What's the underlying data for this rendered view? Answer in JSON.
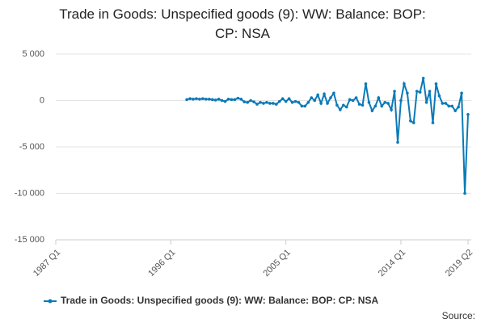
{
  "chart_data": {
    "type": "line",
    "title": "Trade in Goods: Unspecified goods (9): WW: Balance: BOP: CP: NSA",
    "source": "Source:",
    "x": [
      1997.25,
      1997.5,
      1997.75,
      1998,
      1998.25,
      1998.5,
      1998.75,
      1999,
      1999.25,
      1999.5,
      1999.75,
      2000,
      2000.25,
      2000.5,
      2000.75,
      2001,
      2001.25,
      2001.5,
      2001.75,
      2002,
      2002.25,
      2002.5,
      2002.75,
      2003,
      2003.25,
      2003.5,
      2003.75,
      2004,
      2004.25,
      2004.5,
      2004.75,
      2005,
      2005.25,
      2005.5,
      2005.75,
      2006,
      2006.25,
      2006.5,
      2006.75,
      2007,
      2007.25,
      2007.5,
      2007.75,
      2008,
      2008.25,
      2008.5,
      2008.75,
      2009,
      2009.25,
      2009.5,
      2009.75,
      2010,
      2010.25,
      2010.5,
      2010.75,
      2011,
      2011.25,
      2011.5,
      2011.75,
      2012,
      2012.25,
      2012.5,
      2012.75,
      2013,
      2013.25,
      2013.5,
      2013.75,
      2014,
      2014.25,
      2014.5,
      2014.75,
      2015,
      2015.25,
      2015.5,
      2015.75,
      2016,
      2016.25,
      2016.5,
      2016.75,
      2017,
      2017.25,
      2017.5,
      2017.75,
      2018,
      2018.25,
      2018.5,
      2018.75,
      2019,
      2019.25
    ],
    "series": [
      {
        "name": "Trade in Goods: Unspecified goods (9): WW: Balance: BOP: CP: NSA",
        "color": "#0a7ab8",
        "values": [
          100,
          200,
          150,
          200,
          150,
          200,
          150,
          150,
          100,
          50,
          150,
          0,
          -100,
          150,
          100,
          100,
          250,
          150,
          -150,
          -200,
          0,
          -150,
          -400,
          -200,
          -300,
          -200,
          -300,
          -300,
          -400,
          -100,
          200,
          -100,
          200,
          -200,
          -100,
          -200,
          -600,
          -600,
          -200,
          300,
          0,
          600,
          -300,
          700,
          -300,
          300,
          800,
          -500,
          -1000,
          -500,
          -700,
          100,
          0,
          300,
          -400,
          -500,
          1800,
          -200,
          -1100,
          -600,
          300,
          -600,
          -200,
          -300,
          -1000,
          1000,
          -4500,
          0,
          1800,
          800,
          -2200,
          -2400,
          1000,
          900,
          2400,
          -200,
          1000,
          -2400,
          1800,
          500,
          -300,
          -300,
          -600,
          -600,
          -1100,
          -700,
          800,
          -10000,
          -1500
        ]
      }
    ],
    "xlim": [
      1987,
      2019.25
    ],
    "xticks": [
      {
        "value": 1987,
        "label": "1987 Q1"
      },
      {
        "value": 1996,
        "label": "1996 Q1"
      },
      {
        "value": 2005,
        "label": "2005 Q1"
      },
      {
        "value": 2014,
        "label": "2014 Q1"
      },
      {
        "value": 2019.25,
        "label": "2019 Q2"
      }
    ],
    "ylim": [
      -15000,
      5000
    ],
    "yticks": [
      {
        "value": -15000,
        "label": "-15 000"
      },
      {
        "value": -10000,
        "label": "-10 000"
      },
      {
        "value": -5000,
        "label": "-5 000"
      },
      0,
      {
        "value": 5000,
        "label": "5 000"
      }
    ],
    "grid": true
  }
}
